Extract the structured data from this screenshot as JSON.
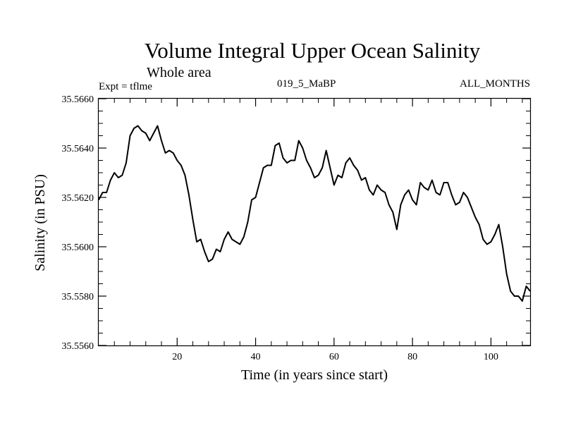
{
  "chart_data": {
    "type": "line",
    "title": "Volume Integral Upper Ocean Salinity",
    "subtitle": "Whole area",
    "expt_label": "Expt = tflme",
    "run_label": "019_5_MaBP",
    "months_label": "ALL_MONTHS",
    "xlabel": "Time (in years since start)",
    "ylabel": "Salinity (in PSU)",
    "xlim": [
      0,
      110
    ],
    "ylim": [
      35.556,
      35.566
    ],
    "xticks": [
      20,
      40,
      60,
      80,
      100
    ],
    "xtick_labels": [
      "20",
      "40",
      "60",
      "80",
      "100"
    ],
    "yticks": [
      35.556,
      35.558,
      35.56,
      35.562,
      35.564,
      35.566
    ],
    "ytick_labels": [
      "35.5560",
      "35.5580",
      "35.5600",
      "35.5620",
      "35.5640",
      "35.5660"
    ],
    "series": [
      {
        "name": "salinity",
        "x": [
          0,
          1,
          2,
          3,
          4,
          5,
          6,
          7,
          8,
          9,
          10,
          11,
          12,
          13,
          14,
          15,
          16,
          17,
          18,
          19,
          20,
          21,
          22,
          23,
          24,
          25,
          26,
          27,
          28,
          29,
          30,
          31,
          32,
          33,
          34,
          35,
          36,
          37,
          38,
          39,
          40,
          41,
          42,
          43,
          44,
          45,
          46,
          47,
          48,
          49,
          50,
          51,
          52,
          53,
          54,
          55,
          56,
          57,
          58,
          59,
          60,
          61,
          62,
          63,
          64,
          65,
          66,
          67,
          68,
          69,
          70,
          71,
          72,
          73,
          74,
          75,
          76,
          77,
          78,
          79,
          80,
          81,
          82,
          83,
          84,
          85,
          86,
          87,
          88,
          89,
          90,
          91,
          92,
          93,
          94,
          95,
          96,
          97,
          98,
          99,
          100,
          101,
          102,
          103,
          104,
          105,
          106,
          107,
          108,
          109,
          110
        ],
        "values": [
          35.5619,
          35.5622,
          35.5622,
          35.5627,
          35.563,
          35.5628,
          35.5629,
          35.5634,
          35.5645,
          35.5648,
          35.5649,
          35.5647,
          35.5646,
          35.5643,
          35.5646,
          35.5649,
          35.5643,
          35.5638,
          35.5639,
          35.5638,
          35.5635,
          35.5633,
          35.5629,
          35.5621,
          35.5611,
          35.5602,
          35.5603,
          35.5598,
          35.5594,
          35.5595,
          35.5599,
          35.5598,
          35.5603,
          35.5606,
          35.5603,
          35.5602,
          35.5601,
          35.5604,
          35.561,
          35.5619,
          35.562,
          35.5626,
          35.5632,
          35.5633,
          35.5633,
          35.5641,
          35.5642,
          35.5636,
          35.5634,
          35.5635,
          35.5635,
          35.5643,
          35.564,
          35.5635,
          35.5632,
          35.5628,
          35.5629,
          35.5632,
          35.5639,
          35.5632,
          35.5625,
          35.5629,
          35.5628,
          35.5634,
          35.5636,
          35.5633,
          35.5631,
          35.5627,
          35.5628,
          35.5623,
          35.5621,
          35.5625,
          35.5623,
          35.5622,
          35.5617,
          35.5614,
          35.5607,
          35.5617,
          35.5621,
          35.5623,
          35.5619,
          35.5617,
          35.5626,
          35.5624,
          35.5623,
          35.5627,
          35.5622,
          35.5621,
          35.5626,
          35.5626,
          35.5621,
          35.5617,
          35.5618,
          35.5622,
          35.562,
          35.5616,
          35.5612,
          35.5609,
          35.5603,
          35.5601,
          35.5602,
          35.5605,
          35.5609,
          35.56,
          35.5589,
          35.5582,
          35.558,
          35.558,
          35.5578,
          35.5584,
          35.5582
        ]
      }
    ],
    "grid": false,
    "line_color": "#000000"
  }
}
